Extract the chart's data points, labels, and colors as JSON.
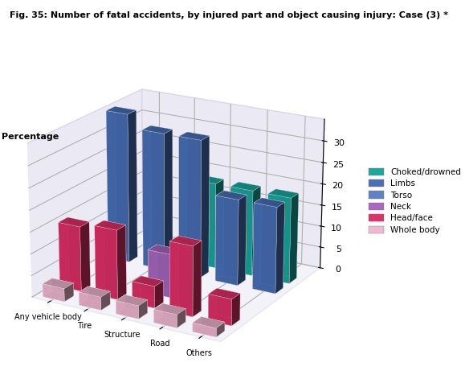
{
  "title": "Fig. 35: Number of fatal accidents, by injured part and object causing injury: Case (3) *",
  "ylabel": "Percentage",
  "categories": [
    "Any vehicle body",
    "Tire",
    "Structure",
    "Road",
    "Others"
  ],
  "series_order": [
    "Choked/drowned",
    "Limbs",
    "Torso",
    "Neck",
    "Head/face",
    "Whole body"
  ],
  "bar_colors": {
    "Whole body": "#f2b8d2",
    "Head/face": "#e03068",
    "Neck": "#a868c0",
    "Torso": "#6080c8",
    "Limbs": "#4870b8",
    "Choked/drowned": "#18aaa0"
  },
  "data": {
    "Whole body": [
      3,
      3,
      3,
      3,
      2
    ],
    "Head/face": [
      15,
      16,
      5,
      16,
      6
    ],
    "Neck": [
      0,
      0,
      10,
      0,
      0
    ],
    "Torso": [
      0,
      0,
      0,
      0,
      0
    ],
    "Limbs": [
      35,
      32,
      32,
      20,
      20
    ],
    "Choked/drowned": [
      0,
      0,
      20,
      20,
      20
    ]
  },
  "y_offsets": {
    "Whole body": 0,
    "Head/face": 1,
    "Neck": 2,
    "Torso": 3,
    "Limbs": 4,
    "Choked/drowned": 5
  },
  "yticks_z": [
    0,
    5,
    10,
    15,
    20,
    25,
    30
  ],
  "elev": 20,
  "azim": -60,
  "bar_width": 0.6,
  "bar_depth": 0.55,
  "legend_order": [
    "Choked/drowned",
    "Limbs",
    "Torso",
    "Neck",
    "Head/face",
    "Whole body"
  ]
}
